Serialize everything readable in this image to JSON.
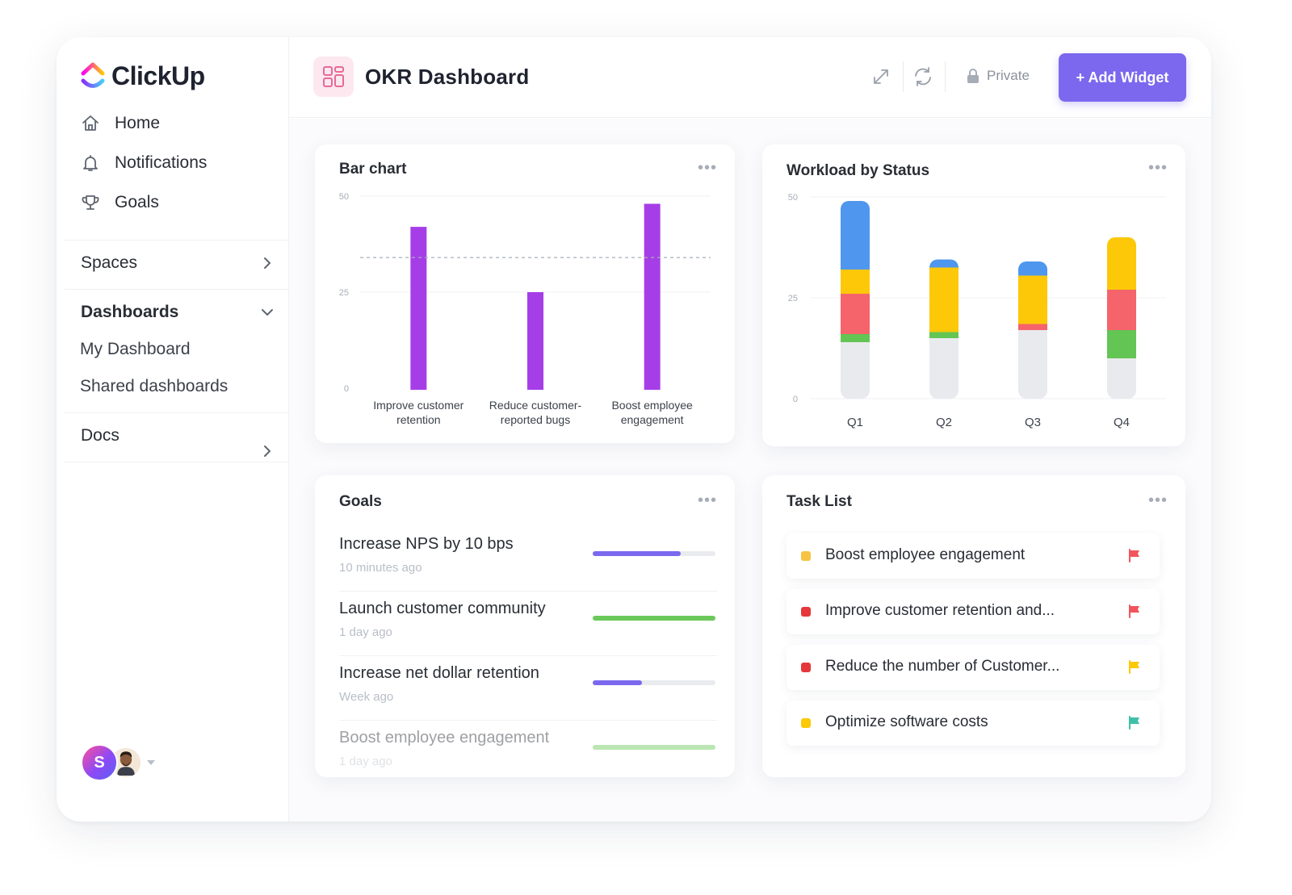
{
  "brand": {
    "name": "ClickUp"
  },
  "sidebar": {
    "nav": [
      {
        "label": "Home",
        "icon": "home-icon"
      },
      {
        "label": "Notifications",
        "icon": "bell-icon"
      },
      {
        "label": "Goals",
        "icon": "trophy-icon"
      }
    ],
    "spaces_label": "Spaces",
    "dashboards_label": "Dashboards",
    "dashboards_items": [
      "My Dashboard",
      "Shared dashboards"
    ],
    "docs_label": "Docs",
    "avatar_initial": "S"
  },
  "header": {
    "title": "OKR Dashboard",
    "privacy_label": "Private",
    "add_widget_label": "+ Add Widget"
  },
  "colors": {
    "accent": "#7b68ee",
    "bar_purple": "#a63ee8",
    "blue": "#4f97ee",
    "yellow": "#fcc808",
    "red": "#f5636b",
    "green": "#62c554",
    "grey": "#e9eaee"
  },
  "chart_data": [
    {
      "type": "bar",
      "title": "Bar chart",
      "categories": [
        "Improve customer retention",
        "Reduce customer-reported bugs",
        "Boost employee engagement"
      ],
      "category_lines": [
        [
          "Improve customer",
          "retention"
        ],
        [
          "Reduce customer-",
          "reported bugs"
        ],
        [
          "Boost employee",
          "engagement"
        ]
      ],
      "values": [
        42,
        25,
        48
      ],
      "target_line": 34,
      "yticks": [
        0,
        25,
        50
      ],
      "ylim": [
        0,
        50
      ]
    },
    {
      "type": "bar",
      "stacked": true,
      "title": "Workload by Status",
      "categories": [
        "Q1",
        "Q2",
        "Q3",
        "Q4"
      ],
      "series": [
        {
          "color": "grey",
          "values": [
            14,
            15,
            17,
            10
          ]
        },
        {
          "color": "green",
          "values": [
            2,
            1.5,
            0,
            7
          ]
        },
        {
          "color": "red",
          "values": [
            10,
            0,
            1.5,
            10
          ]
        },
        {
          "color": "yellow",
          "values": [
            6,
            16,
            12,
            13
          ]
        },
        {
          "color": "blue",
          "values": [
            17,
            2,
            3.5,
            0
          ]
        }
      ],
      "yticks": [
        0,
        25,
        50
      ],
      "ylim": [
        0,
        50
      ]
    }
  ],
  "goals": {
    "title": "Goals",
    "items": [
      {
        "name": "Increase NPS by 10 bps",
        "time": "10 minutes ago",
        "progress": 0.72,
        "color": "#7b68ee"
      },
      {
        "name": "Launch customer community",
        "time": "1 day ago",
        "progress": 1.0,
        "color": "#6bc95a"
      },
      {
        "name": "Increase net dollar retention",
        "time": "Week ago",
        "progress": 0.4,
        "color": "#7b68ee"
      },
      {
        "name": "Boost employee engagement",
        "time": "1 day ago",
        "progress": 1.0,
        "color": "#6bc95a"
      }
    ]
  },
  "tasks": {
    "title": "Task List",
    "items": [
      {
        "name": "Boost employee engagement",
        "dot": "#f6c343",
        "flag": "#f2545b"
      },
      {
        "name": "Improve customer retention and...",
        "dot": "#e5383b",
        "flag": "#f2545b"
      },
      {
        "name": "Reduce the number of Customer...",
        "dot": "#e5383b",
        "flag": "#fcc808"
      },
      {
        "name": "Optimize software costs",
        "dot": "#fcc808",
        "flag": "#3fc0a6"
      }
    ]
  }
}
